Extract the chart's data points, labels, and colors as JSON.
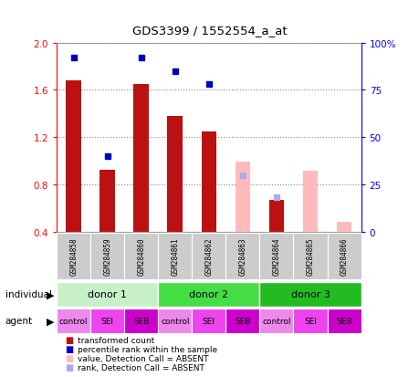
{
  "title": "GDS3399 / 1552554_a_at",
  "samples": [
    "GSM284858",
    "GSM284859",
    "GSM284860",
    "GSM284861",
    "GSM284862",
    "GSM284863",
    "GSM284864",
    "GSM284865",
    "GSM284866"
  ],
  "red_bars": [
    1.68,
    0.92,
    1.65,
    1.38,
    1.25,
    null,
    0.67,
    null,
    null
  ],
  "pink_bars_right": [
    null,
    null,
    null,
    null,
    null,
    37,
    null,
    32,
    5
  ],
  "blue_squares_pct": [
    92,
    40,
    92,
    85,
    78,
    null,
    null,
    null,
    null
  ],
  "lightblue_squares_right": [
    null,
    null,
    null,
    null,
    null,
    30,
    18,
    null,
    null
  ],
  "blue_sq_on_red": [
    null,
    0.925,
    null,
    null,
    null,
    null,
    null,
    null,
    null
  ],
  "blue_sq_on_red_pct": [
    null,
    40,
    null,
    null,
    null,
    null,
    null,
    null,
    null
  ],
  "red_sq_on_pink": [
    null,
    null,
    null,
    null,
    null,
    null,
    0.67,
    null,
    null
  ],
  "red_sq_on_pink_pct": [
    null,
    null,
    null,
    null,
    null,
    null,
    18,
    null,
    null
  ],
  "ylim_left": [
    0.4,
    2.0
  ],
  "ylim_right": [
    0,
    100
  ],
  "yticks_left": [
    0.4,
    0.8,
    1.2,
    1.6,
    2.0
  ],
  "yticks_right": [
    0,
    25,
    50,
    75,
    100
  ],
  "ytick_labels_right": [
    "0",
    "25",
    "50",
    "75",
    "100%"
  ],
  "donors": [
    {
      "label": "donor 1",
      "start": 0,
      "end": 3
    },
    {
      "label": "donor 2",
      "start": 3,
      "end": 6
    },
    {
      "label": "donor 3",
      "start": 6,
      "end": 9
    }
  ],
  "donor_colors": [
    "#c8f0c8",
    "#44dd44",
    "#22bb22"
  ],
  "agents": [
    "control",
    "SEI",
    "SEB",
    "control",
    "SEI",
    "SEB",
    "control",
    "SEI",
    "SEB"
  ],
  "bar_width": 0.45,
  "bar_bottom": 0.4,
  "grid_color": "#888888",
  "bg_color": "#ffffff",
  "sample_box_color": "#cccccc",
  "bar_red": "#bb1111",
  "bar_pink": "#ffbbbb",
  "sq_blue": "#0000bb",
  "sq_lightblue": "#aaaaee",
  "agent_colors": [
    "#ee88ee",
    "#ee44ee",
    "#cc00cc"
  ]
}
